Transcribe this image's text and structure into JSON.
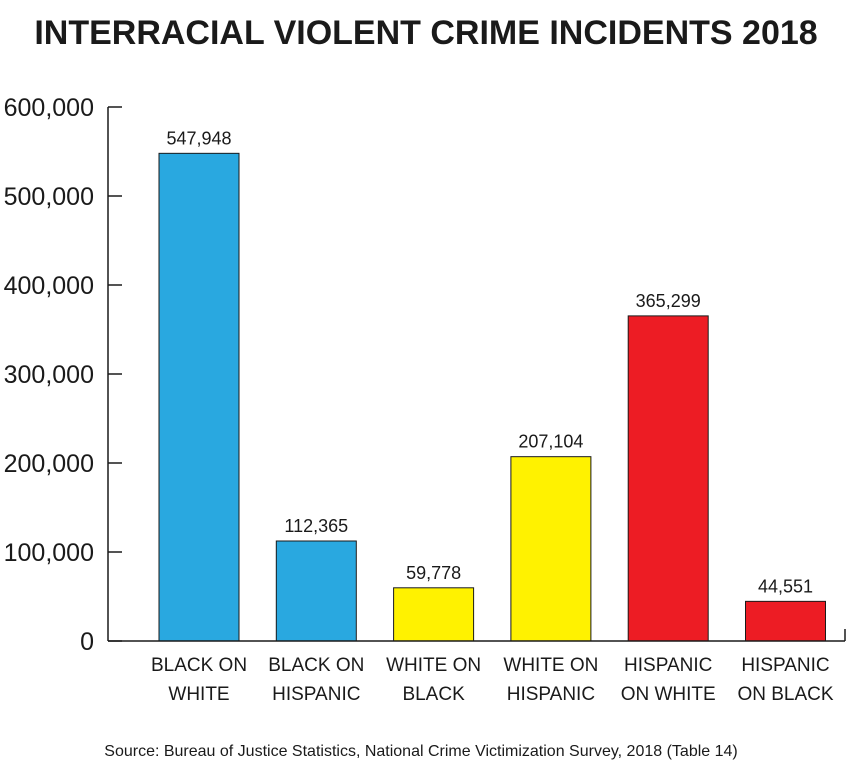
{
  "chart_data": {
    "type": "bar",
    "title": "INTERRACIAL VIOLENT CRIME INCIDENTS 2018",
    "xlabel": "",
    "ylabel": "",
    "ylim": [
      0,
      600000
    ],
    "yticks": [
      {
        "value": 0,
        "label": "0"
      },
      {
        "value": 100000,
        "label": "100,000"
      },
      {
        "value": 200000,
        "label": "200,000"
      },
      {
        "value": 300000,
        "label": "300,000"
      },
      {
        "value": 400000,
        "label": "400,000"
      },
      {
        "value": 500000,
        "label": "500,000"
      },
      {
        "value": 600000,
        "label": "600,000"
      }
    ],
    "grid": false,
    "legend": "none",
    "categories": [
      [
        "BLACK ON",
        "WHITE"
      ],
      [
        "BLACK ON",
        "HISPANIC"
      ],
      [
        "WHITE ON",
        "BLACK"
      ],
      [
        "WHITE ON",
        "HISPANIC"
      ],
      [
        "HISPANIC",
        "ON WHITE"
      ],
      [
        "HISPANIC",
        "ON BLACK"
      ]
    ],
    "values": [
      547948,
      112365,
      59778,
      207104,
      365299,
      44551
    ],
    "value_labels": [
      "547,948",
      "112,365",
      "59,778",
      "207,104",
      "365,299",
      "44,551"
    ],
    "colors": [
      "#29a8e0",
      "#29a8e0",
      "#fff200",
      "#fff200",
      "#ed1c24",
      "#ed1c24"
    ],
    "source": "Source: Bureau of Justice Statistics, National Crime Victimization Survey, 2018 (Table 14)"
  }
}
